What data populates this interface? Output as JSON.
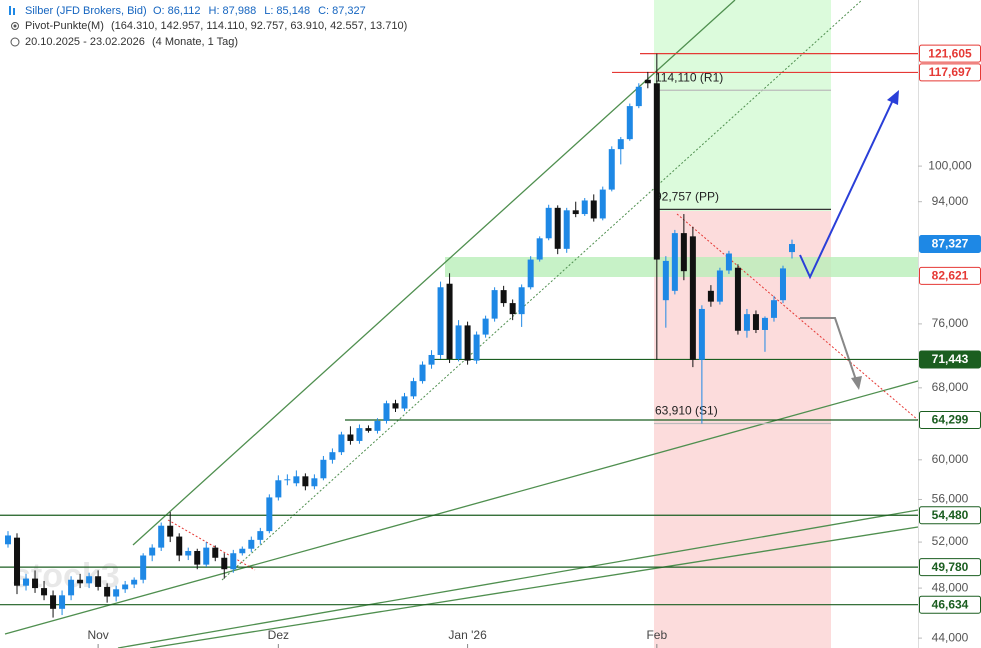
{
  "chart_data": {
    "type": "candlestick",
    "title": "Silber (JFD Brokers, Bid)",
    "quote": [
      "O: 86,112",
      "H: 87,988",
      "L: 85,148",
      "C: 87,327"
    ],
    "indicator": "Pivot-Punkte(M)",
    "indicator_values": "(164.310, 142.957, 114.110, 92.757, 63.910, 42.557, 13.710)",
    "period": "20.10.2025 - 23.02.2026",
    "period_length": "(4 Monate, 1 Tag)",
    "watermark": "stock3",
    "categories": [
      null,
      null,
      null,
      null,
      null,
      null,
      null,
      null,
      null,
      null,
      "Nov",
      null,
      null,
      null,
      null,
      null,
      null,
      null,
      null,
      null,
      null,
      null,
      null,
      null,
      null,
      null,
      null,
      null,
      null,
      null,
      "Dez",
      null,
      null,
      null,
      null,
      null,
      null,
      null,
      null,
      null,
      null,
      null,
      null,
      null,
      null,
      null,
      null,
      null,
      null,
      null,
      null,
      "Jan '26",
      null,
      null,
      null,
      null,
      null,
      null,
      null,
      null,
      null,
      null,
      null,
      null,
      null,
      null,
      null,
      null,
      null,
      null,
      null,
      null,
      "Feb",
      null,
      null,
      null,
      null,
      null,
      null,
      null,
      null,
      null,
      null,
      null,
      null,
      null,
      null,
      null
    ],
    "ohlc": [
      [
        51800,
        53000,
        51500,
        52600
      ],
      [
        52400,
        52800,
        47500,
        48200
      ],
      [
        48200,
        49200,
        47800,
        48800
      ],
      [
        48800,
        49500,
        47600,
        48000
      ],
      [
        48000,
        48600,
        47000,
        47400
      ],
      [
        47400,
        47800,
        45600,
        46300
      ],
      [
        46300,
        47800,
        45800,
        47400
      ],
      [
        47400,
        49000,
        47000,
        48700
      ],
      [
        48700,
        49200,
        48000,
        48400
      ],
      [
        48400,
        49300,
        48000,
        49000
      ],
      [
        49000,
        49500,
        47800,
        48100
      ],
      [
        48100,
        48400,
        46800,
        47300
      ],
      [
        47300,
        48200,
        46900,
        47900
      ],
      [
        47900,
        48600,
        47600,
        48300
      ],
      [
        48300,
        48900,
        48000,
        48700
      ],
      [
        48700,
        51000,
        48400,
        50800
      ],
      [
        50800,
        51800,
        50300,
        51500
      ],
      [
        51500,
        53800,
        51200,
        53500
      ],
      [
        53500,
        54800,
        52000,
        52500
      ],
      [
        52500,
        52800,
        50300,
        50800
      ],
      [
        50800,
        51500,
        50400,
        51200
      ],
      [
        51200,
        51400,
        49600,
        50000
      ],
      [
        50000,
        52000,
        49800,
        51500
      ],
      [
        51500,
        51700,
        50300,
        50600
      ],
      [
        50600,
        51000,
        48800,
        49600
      ],
      [
        49600,
        51300,
        49300,
        51000
      ],
      [
        51000,
        51600,
        50800,
        51400
      ],
      [
        51400,
        52500,
        51100,
        52200
      ],
      [
        52200,
        53300,
        51800,
        53000
      ],
      [
        53000,
        56500,
        52800,
        56200
      ],
      [
        56200,
        58400,
        55900,
        57900
      ],
      [
        57900,
        58500,
        57400,
        58000
      ],
      [
        57600,
        58900,
        57300,
        58300
      ],
      [
        58300,
        58600,
        56900,
        57300
      ],
      [
        57300,
        58500,
        57000,
        58100
      ],
      [
        58100,
        60400,
        57900,
        60000
      ],
      [
        60000,
        61200,
        59600,
        60800
      ],
      [
        60800,
        63000,
        60500,
        62700
      ],
      [
        62700,
        63600,
        61600,
        62000
      ],
      [
        62000,
        63800,
        61700,
        63400
      ],
      [
        63400,
        63700,
        62900,
        63100
      ],
      [
        63100,
        64500,
        62800,
        64200
      ],
      [
        64200,
        66500,
        63900,
        66200
      ],
      [
        66200,
        66600,
        65200,
        65600
      ],
      [
        65600,
        67400,
        65300,
        67000
      ],
      [
        67000,
        69200,
        66700,
        68800
      ],
      [
        68800,
        71200,
        68500,
        70800
      ],
      [
        70800,
        72600,
        70300,
        72000
      ],
      [
        72000,
        81800,
        71500,
        81000
      ],
      [
        81500,
        83000,
        71000,
        71500
      ],
      [
        71500,
        76500,
        71200,
        75800
      ],
      [
        75800,
        76300,
        70800,
        71300
      ],
      [
        71300,
        75000,
        70900,
        74600
      ],
      [
        74600,
        77100,
        74200,
        76700
      ],
      [
        76700,
        81000,
        76300,
        80600
      ],
      [
        80600,
        81200,
        78300,
        78800
      ],
      [
        78800,
        79300,
        76500,
        77300
      ],
      [
        77300,
        81400,
        75600,
        81000
      ],
      [
        81000,
        85500,
        80700,
        85000
      ],
      [
        85000,
        88500,
        84700,
        88200
      ],
      [
        88200,
        93500,
        87900,
        93000
      ],
      [
        93000,
        93400,
        85800,
        86600
      ],
      [
        86600,
        93000,
        86000,
        92600
      ],
      [
        92600,
        94000,
        91500,
        92000
      ],
      [
        92000,
        94600,
        91700,
        94200
      ],
      [
        94200,
        95200,
        90800,
        91300
      ],
      [
        91300,
        96500,
        91000,
        96000
      ],
      [
        96000,
        103500,
        95700,
        103000
      ],
      [
        103000,
        105200,
        100300,
        104800
      ],
      [
        104800,
        111500,
        104500,
        111000
      ],
      [
        111000,
        115500,
        110600,
        114800
      ],
      [
        116200,
        117800,
        114500,
        115500
      ],
      [
        115500,
        121600,
        71400,
        85000
      ],
      [
        79200,
        85500,
        75500,
        84800
      ],
      [
        80500,
        89500,
        80000,
        89000
      ],
      [
        89000,
        92000,
        82000,
        83300
      ],
      [
        88500,
        90000,
        70500,
        71400
      ],
      [
        71400,
        78500,
        63900,
        78000
      ],
      [
        80500,
        81300,
        78300,
        79000
      ],
      [
        79000,
        83800,
        78600,
        83400
      ],
      [
        83400,
        86300,
        82900,
        85900
      ],
      [
        83800,
        84300,
        74600,
        75100
      ],
      [
        75100,
        78000,
        74200,
        77300
      ],
      [
        77300,
        77800,
        74800,
        75200
      ],
      [
        75200,
        77000,
        72400,
        76800
      ],
      [
        76800,
        79800,
        76300,
        79200
      ],
      [
        79200,
        84100,
        78800,
        83700
      ],
      [
        86112,
        87988,
        85148,
        87327
      ]
    ],
    "up_color": "#1e88e5",
    "down_color": "#111111",
    "log_scale": true,
    "ylim": [
      43250,
      133500
    ],
    "yticks": [
      {
        "value": 44000,
        "label": "44,000"
      },
      {
        "value": 48000,
        "label": "48,000"
      },
      {
        "value": 52000,
        "label": "52,000"
      },
      {
        "value": 56000,
        "label": "56,000"
      },
      {
        "value": 60000,
        "label": "60,000"
      },
      {
        "value": 68000,
        "label": "68,000"
      },
      {
        "value": 76000,
        "label": "76,000"
      },
      {
        "value": 94000,
        "label": "94,000"
      },
      {
        "value": 100000,
        "label": "100,000"
      }
    ],
    "pivots": [
      {
        "value": 114110,
        "label": "114,110 (R1)"
      },
      {
        "value": 92757,
        "label": "92,757 (PP)"
      },
      {
        "value": 63910,
        "label": "63,910 (S1)"
      }
    ],
    "levels": [
      {
        "value": 121605,
        "label": "121,605",
        "color": "#e53935",
        "filled": false
      },
      {
        "value": 117697,
        "label": "117,697",
        "color": "#e53935",
        "filled": false
      },
      {
        "value": 87327,
        "label": "87,327",
        "color": "#1e88e5",
        "filled": true
      },
      {
        "value": 82621,
        "label": "82,621",
        "color": "#e53935",
        "filled": false
      },
      {
        "value": 71443,
        "label": "71,443",
        "color": "#1b5e20",
        "filled": true
      },
      {
        "value": 64299,
        "label": "64,299",
        "color": "#1b5e20",
        "filled": false
      },
      {
        "value": 54480,
        "label": "54,480",
        "color": "#1b5e20",
        "filled": false
      },
      {
        "value": 49780,
        "label": "49,780",
        "color": "#1b5e20",
        "filled": false
      },
      {
        "value": 46634,
        "label": "46,634",
        "color": "#1b5e20",
        "filled": false
      }
    ]
  }
}
